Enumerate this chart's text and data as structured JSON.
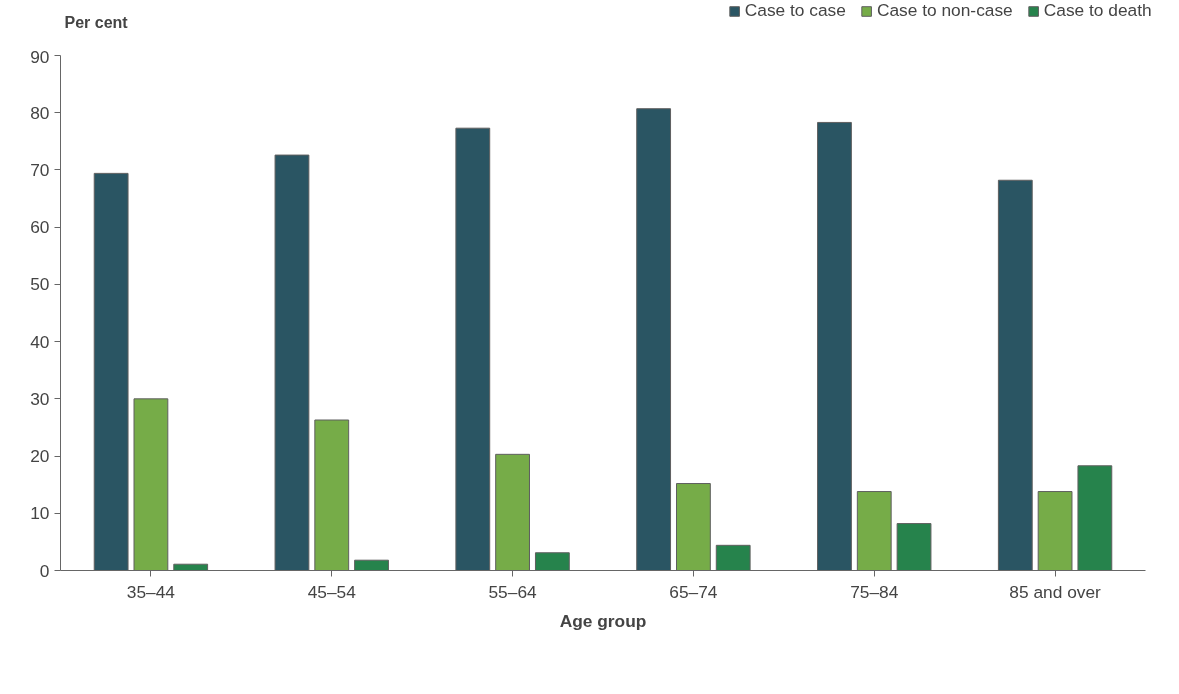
{
  "chart_data": {
    "type": "bar",
    "ylabel": "Per cent",
    "xlabel": "Age group",
    "categories": [
      "35–44",
      "45–54",
      "55–64",
      "65–74",
      "75–84",
      "85 and over"
    ],
    "series": [
      {
        "name": "Case to case",
        "color": "#2a5563",
        "values": [
          69.4,
          72.6,
          77.3,
          80.7,
          78.3,
          68.2
        ]
      },
      {
        "name": "Case to non-case",
        "color": "#76ac48",
        "values": [
          30.0,
          26.3,
          20.3,
          15.2,
          13.8,
          13.8
        ]
      },
      {
        "name": "Case to death",
        "color": "#26834c",
        "values": [
          1.1,
          1.8,
          3.1,
          4.4,
          8.2,
          18.3
        ]
      }
    ],
    "ylim": [
      0,
      90
    ],
    "yticks": [
      0,
      10,
      20,
      30,
      40,
      50,
      60,
      70,
      80,
      90
    ],
    "grid": false,
    "legend": "top right"
  }
}
